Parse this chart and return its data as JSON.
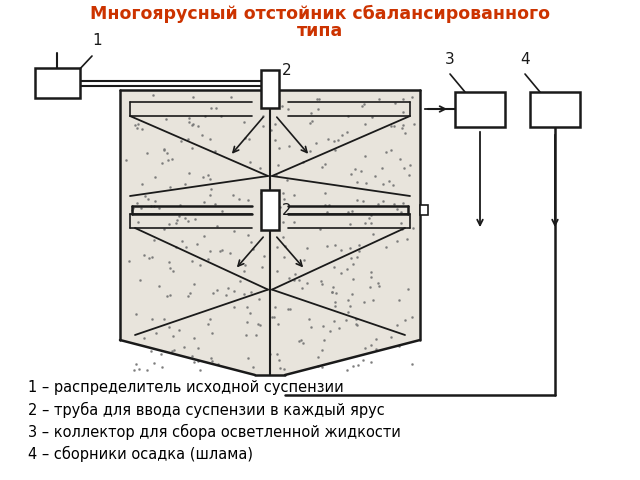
{
  "title_line1": "Многоярусный отстойник сбалансированного",
  "title_line2": "типа",
  "title_color": "#cc3300",
  "title_fontsize": 12.5,
  "legend_lines": [
    "1 – распределитель исходной суспензии",
    "2 – труба для ввода суспензии в каждый ярус",
    "3 – коллектор для сбора осветленной жидкости",
    "4 – сборники осадка (шлама)"
  ],
  "legend_fontsize": 10.5,
  "bg_color": "#ffffff",
  "diagram_color": "#1a1a1a",
  "dot_color": "#777777",
  "tank_fill": "#e8e4dc"
}
